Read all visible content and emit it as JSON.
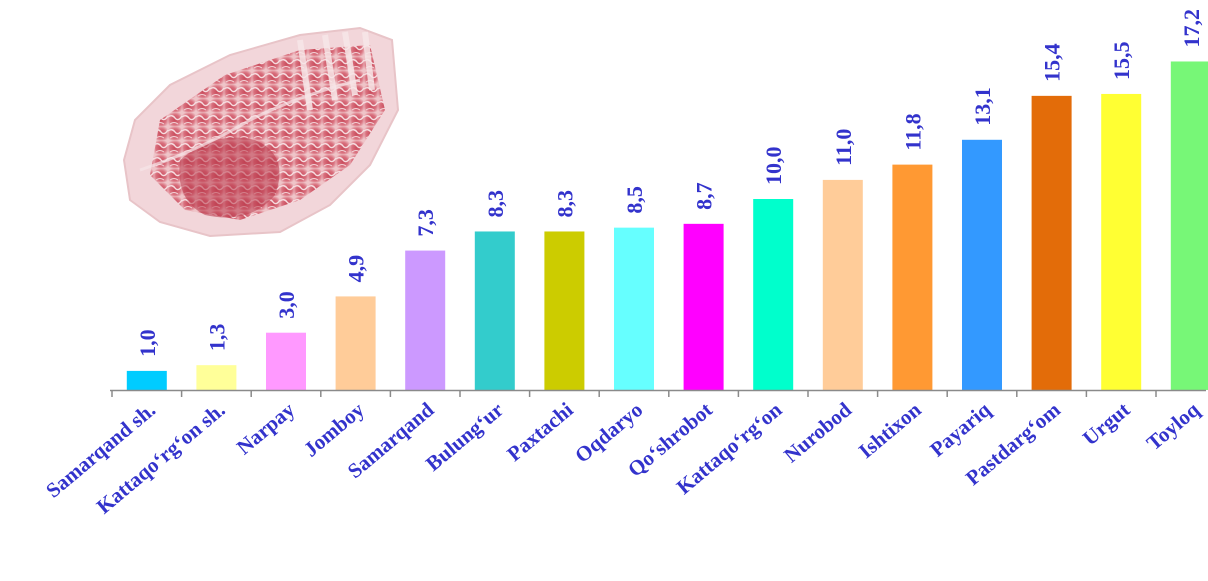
{
  "chart_data": {
    "type": "bar",
    "categories": [
      "Samarqand sh.",
      "Kattaqo‘rg‘on sh.",
      "Narpay",
      "Jomboy",
      "Samarqand",
      "Bulung‘ur",
      "Paxtachi",
      "Oqdaryo",
      "Qo‘shrobot",
      "Kattaqo‘rg‘on",
      "Nurobod",
      "Ishtixon",
      "Payariq",
      "Pastdarg‘om",
      "Urgut",
      "Toyloq"
    ],
    "values": [
      1.0,
      1.3,
      3.0,
      4.9,
      7.3,
      8.3,
      8.3,
      8.5,
      8.7,
      10.0,
      11.0,
      11.8,
      13.1,
      15.4,
      15.5,
      17.2
    ],
    "value_labels": [
      "1,0",
      "1,3",
      "3,0",
      "4,9",
      "7,3",
      "8,3",
      "8,3",
      "8,5",
      "8,7",
      "10,0",
      "11,0",
      "11,8",
      "13,1",
      "15,4",
      "15,5",
      "17,2"
    ],
    "colors": [
      "#00ccff",
      "#ffff99",
      "#ff99ff",
      "#ffcc99",
      "#cc99ff",
      "#33cccc",
      "#cccc00",
      "#66ffff",
      "#ff00ff",
      "#00ffcc",
      "#ffcc99",
      "#ff9933",
      "#3399ff",
      "#e36c09",
      "#ffff33",
      "#77f777"
    ],
    "value_label_color": "#3333cc",
    "category_label_color": "#3333cc",
    "ylim": [
      0,
      18
    ],
    "grid": false,
    "legend": "none",
    "decorative_image": "marbled-beef-rib-photo"
  }
}
